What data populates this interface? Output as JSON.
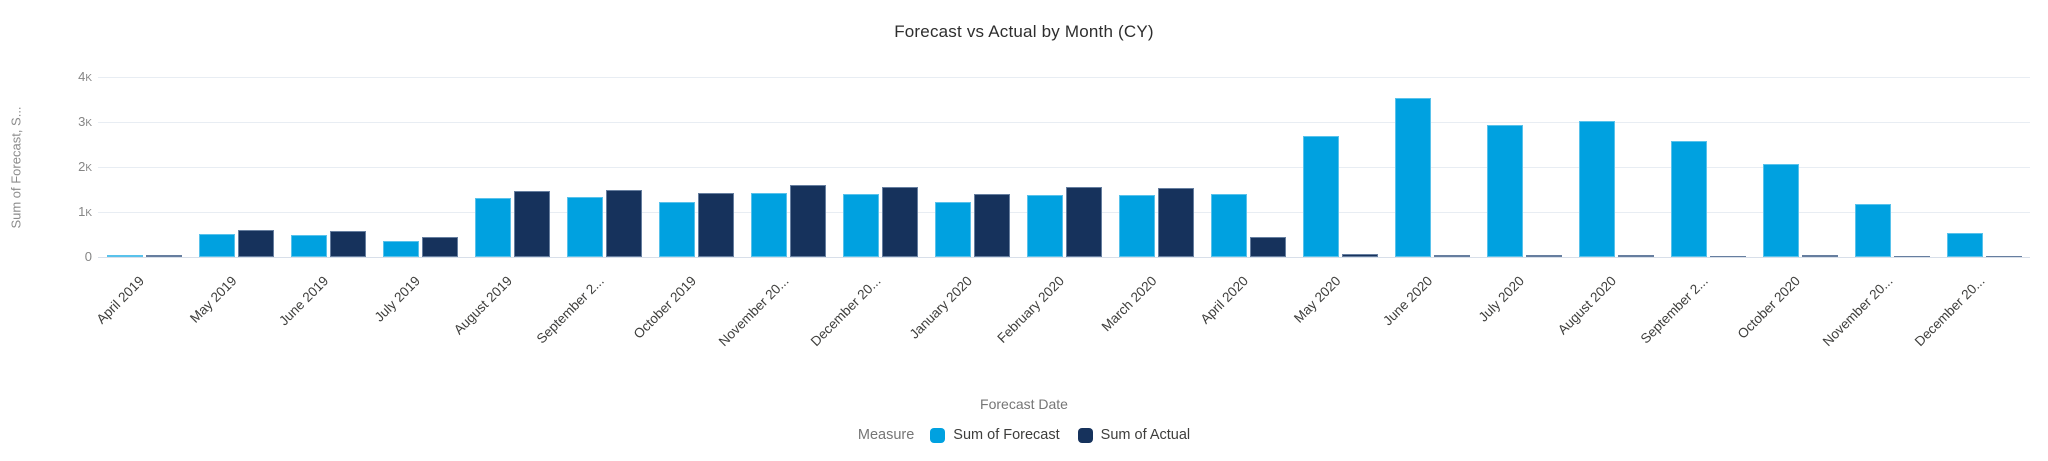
{
  "title": "Forecast vs Actual by Month (CY)",
  "legend": {
    "label": "Measure",
    "items": [
      {
        "name": "Sum of Forecast",
        "color": "#00A1E0"
      },
      {
        "name": "Sum of Actual",
        "color": "#16325C"
      }
    ]
  },
  "colors": {
    "forecast": "#00A1E0",
    "actual": "#16325C",
    "gridline": "#e8edf3",
    "axis_line": "#d8dfe9",
    "tick_text": "#858585",
    "label_text": "#3e3e3c",
    "muted_text": "#767676",
    "title_text": "#2e2e2e",
    "background": "#ffffff"
  },
  "chart_data": {
    "type": "bar",
    "title": "Forecast vs Actual by Month (CY)",
    "xlabel": "Forecast Date",
    "ylabel": "Sum of Forecast, S...",
    "ylim": [
      0,
      4000
    ],
    "grid": true,
    "legend_position": "bottom",
    "legend_title": "Measure",
    "y_ticks": [
      {
        "label": "4K",
        "value": 4000
      },
      {
        "label": "3K",
        "value": 3000
      },
      {
        "label": "2K",
        "value": 2000
      },
      {
        "label": "1K",
        "value": 1000
      },
      {
        "label": "0",
        "value": 0
      }
    ],
    "categories": [
      "April 2019",
      "May 2019",
      "June 2019",
      "July 2019",
      "August 2019",
      "September 2...",
      "October 2019",
      "November 20...",
      "December 20...",
      "January 2020",
      "February 2020",
      "March 2020",
      "April 2020",
      "May 2020",
      "June 2020",
      "July 2020",
      "August 2020",
      "September 2...",
      "October 2020",
      "November 20...",
      "December 20..."
    ],
    "series": [
      {
        "name": "Sum of Forecast",
        "color": "#00A1E0",
        "values": [
          40,
          510,
          490,
          360,
          1310,
          1340,
          1220,
          1430,
          1390,
          1230,
          1380,
          1370,
          1400,
          2700,
          3530,
          2930,
          3020,
          2570,
          2070,
          1170,
          540
        ]
      },
      {
        "name": "Sum of Actual",
        "color": "#16325C",
        "values": [
          40,
          610,
          580,
          440,
          1460,
          1490,
          1430,
          1590,
          1560,
          1390,
          1560,
          1530,
          440,
          60,
          50,
          40,
          40,
          20,
          40,
          30,
          10
        ]
      }
    ]
  }
}
